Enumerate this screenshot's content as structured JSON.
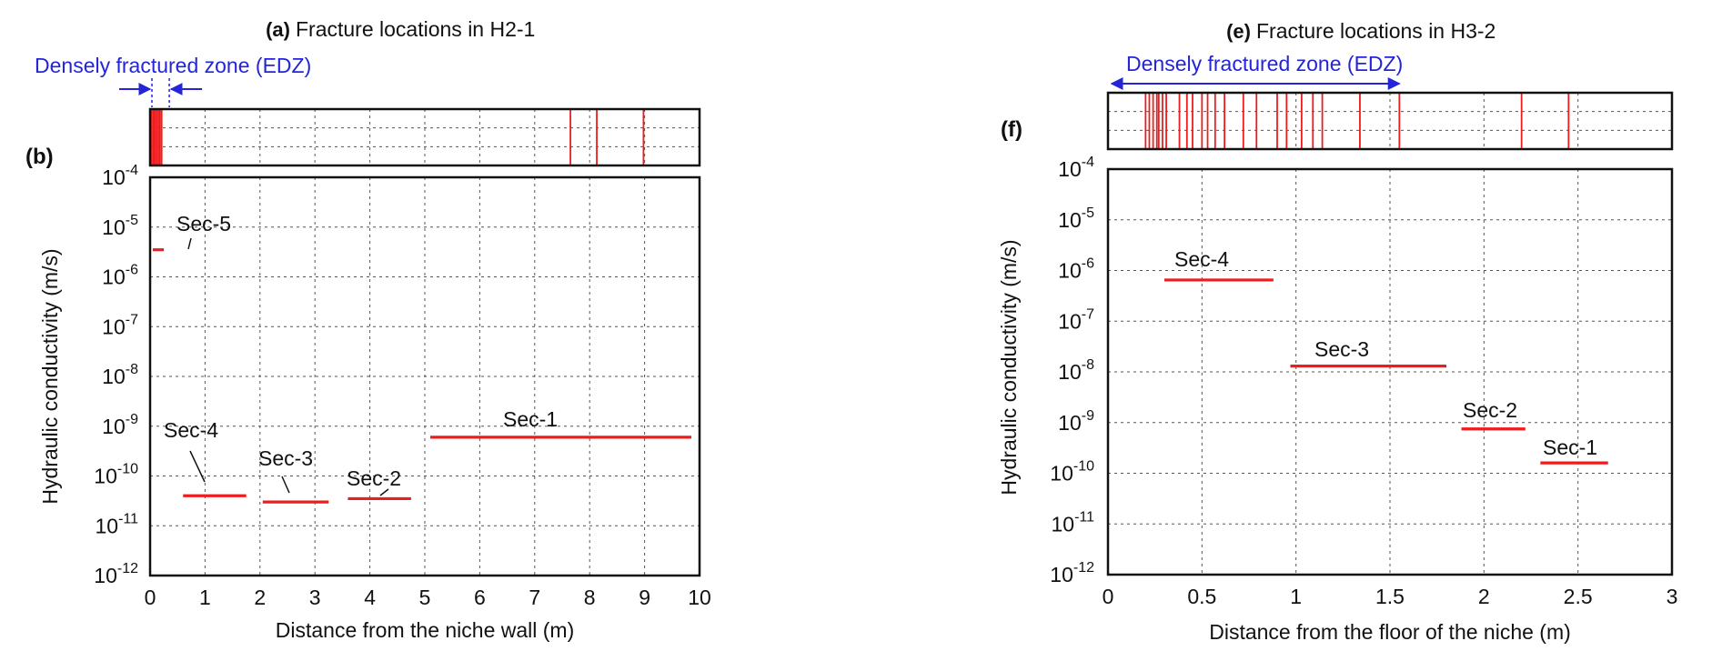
{
  "colors": {
    "series": "#ee1c1c",
    "annotation": "#2424d8",
    "axis": "#111111",
    "grid": "#555555"
  },
  "chart_data": [
    {
      "type": "fracture-strip",
      "panel_label": "(a)",
      "title": "Fracture locations in H2-1",
      "xlim": [
        0,
        10
      ],
      "fractures": [
        0.03,
        0.06,
        0.09,
        0.12,
        0.15,
        0.18,
        0.21,
        7.65,
        8.13,
        8.98
      ],
      "annotation": {
        "label": "Densely fractured zone (EDZ)",
        "style": "inward-arrows",
        "from": 0,
        "to": 0.25
      }
    },
    {
      "type": "segment",
      "panel_label": "(b)",
      "xlabel": "Distance from the niche wall (m)",
      "ylabel": "Hydraulic conductivity (m/s)",
      "xlim": [
        0,
        10
      ],
      "ylim_log10": [
        -12,
        -4
      ],
      "x_ticks": [
        "0",
        "1",
        "2",
        "3",
        "4",
        "5",
        "6",
        "7",
        "8",
        "9",
        "10"
      ],
      "y_ticks": [
        {
          "base": "10",
          "exp": "-12"
        },
        {
          "base": "10",
          "exp": "-11"
        },
        {
          "base": "10",
          "exp": "-10"
        },
        {
          "base": "10",
          "exp": "-9"
        },
        {
          "base": "10",
          "exp": "-8"
        },
        {
          "base": "10",
          "exp": "-7"
        },
        {
          "base": "10",
          "exp": "-6"
        },
        {
          "base": "10",
          "exp": "-5"
        },
        {
          "base": "10",
          "exp": "-4"
        }
      ],
      "grid": true,
      "series": [
        {
          "name": "Sec-5",
          "x0": 0.05,
          "x1": 0.25,
          "k": 3.5e-06
        },
        {
          "name": "Sec-4",
          "x0": 0.6,
          "x1": 1.75,
          "k": 4e-11
        },
        {
          "name": "Sec-3",
          "x0": 2.05,
          "x1": 3.25,
          "k": 3e-11
        },
        {
          "name": "Sec-2",
          "x0": 3.6,
          "x1": 4.75,
          "k": 3.5e-11
        },
        {
          "name": "Sec-1",
          "x0": 5.1,
          "x1": 9.85,
          "k": 6e-10
        }
      ]
    },
    {
      "type": "fracture-strip",
      "panel_label": "(e)",
      "title": "Fracture locations in H3-2",
      "xlim": [
        0,
        3
      ],
      "fractures": [
        0.2,
        0.22,
        0.24,
        0.26,
        0.27,
        0.29,
        0.31,
        0.38,
        0.42,
        0.45,
        0.5,
        0.53,
        0.57,
        0.62,
        0.72,
        0.79,
        0.9,
        0.95,
        1.03,
        1.09,
        1.14,
        1.34,
        1.55,
        2.2,
        2.45
      ],
      "annotation": {
        "label": "Densely fractured zone (EDZ)",
        "style": "double-arrow",
        "from": 0,
        "to": 1.55
      }
    },
    {
      "type": "segment",
      "panel_label": "(f)",
      "xlabel": "Distance from the floor of the niche (m)",
      "ylabel": "Hydraulic conductivity (m/s)",
      "xlim": [
        0,
        3
      ],
      "ylim_log10": [
        -12,
        -4
      ],
      "x_ticks": [
        "0",
        "0.5",
        "1",
        "1.5",
        "2",
        "2.5",
        "3"
      ],
      "y_ticks": [
        {
          "base": "10",
          "exp": "-12"
        },
        {
          "base": "10",
          "exp": "-11"
        },
        {
          "base": "10",
          "exp": "-10"
        },
        {
          "base": "10",
          "exp": "-9"
        },
        {
          "base": "10",
          "exp": "-8"
        },
        {
          "base": "10",
          "exp": "-7"
        },
        {
          "base": "10",
          "exp": "-6"
        },
        {
          "base": "10",
          "exp": "-5"
        },
        {
          "base": "10",
          "exp": "-4"
        }
      ],
      "grid": true,
      "series": [
        {
          "name": "Sec-4",
          "x0": 0.3,
          "x1": 0.88,
          "k": 6.5e-07
        },
        {
          "name": "Sec-3",
          "x0": 0.97,
          "x1": 1.8,
          "k": 1.3e-08
        },
        {
          "name": "Sec-2",
          "x0": 1.88,
          "x1": 2.22,
          "k": 7.5e-10
        },
        {
          "name": "Sec-1",
          "x0": 2.3,
          "x1": 2.66,
          "k": 1.6e-10
        }
      ]
    }
  ]
}
